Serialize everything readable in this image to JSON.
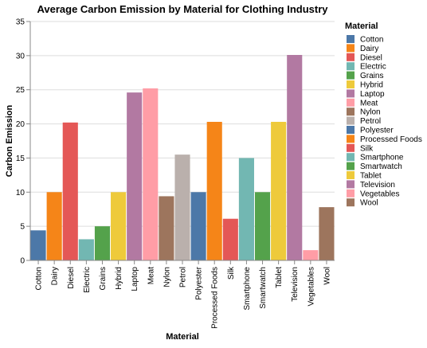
{
  "chart_data": {
    "type": "bar",
    "title": "Average Carbon Emission by Material for Clothing Industry",
    "xlabel": "Material",
    "ylabel": "Carbon Emission",
    "ylim": [
      0,
      35
    ],
    "yticks": [
      0,
      5,
      10,
      15,
      20,
      25,
      30,
      35
    ],
    "grid": true,
    "legend_title": "Material",
    "legend_position": "right",
    "categories": [
      "Cotton",
      "Dairy",
      "Diesel",
      "Electric",
      "Grains",
      "Hybrid",
      "Laptop",
      "Meat",
      "Nylon",
      "Petrol",
      "Polyester",
      "Processed Foods",
      "Silk",
      "Smartphone",
      "Smartwatch",
      "Tablet",
      "Television",
      "Vegetables",
      "Wool"
    ],
    "values": [
      4.4,
      10.0,
      20.2,
      3.1,
      5.0,
      10.0,
      24.6,
      25.2,
      9.4,
      15.5,
      10.0,
      20.3,
      6.1,
      15.0,
      10.0,
      20.3,
      30.1,
      1.5,
      7.8
    ],
    "colors": [
      "#4c78a8",
      "#f58518",
      "#e45756",
      "#72b7b2",
      "#54a24b",
      "#eeca3b",
      "#b279a2",
      "#ff9da6",
      "#9d755d",
      "#bab0ac",
      "#4c78a8",
      "#f58518",
      "#e45756",
      "#72b7b2",
      "#54a24b",
      "#eeca3b",
      "#b279a2",
      "#ff9da6",
      "#9d755d"
    ]
  }
}
